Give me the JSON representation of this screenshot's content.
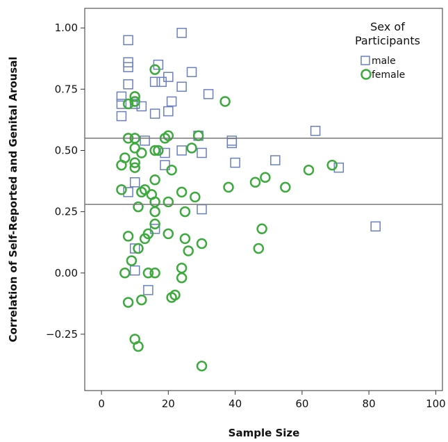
{
  "chart_data": {
    "type": "scatter",
    "title": "",
    "xlabel": "Sample Size",
    "ylabel": "Correlation of Self-Reported and Genital Arousal",
    "xlim": [
      -5,
      102
    ],
    "ylim": [
      -0.48,
      1.08
    ],
    "xticks": [
      0,
      20,
      40,
      60,
      80,
      100
    ],
    "xtick_labels": [
      "0",
      "20",
      "40",
      "60",
      "80",
      "100"
    ],
    "yticks": [
      1.0,
      0.75,
      0.5,
      0.25,
      0.0,
      -0.25
    ],
    "ytick_labels": [
      "1.00",
      "0.75",
      "0.50",
      "0.25",
      "0.00",
      "−0.25"
    ],
    "grid": false,
    "reference_lines_y": [
      0.55,
      0.28
    ],
    "legend": {
      "title_line1": "Sex of",
      "title_line2": "Participants",
      "position": "top-right"
    },
    "series": [
      {
        "name": "male",
        "marker": "square",
        "color": "#6a7fc1",
        "points": [
          [
            8,
            0.95
          ],
          [
            24,
            0.98
          ],
          [
            8,
            0.86
          ],
          [
            8,
            0.84
          ],
          [
            8,
            0.77
          ],
          [
            17,
            0.85
          ],
          [
            20,
            0.8
          ],
          [
            27,
            0.82
          ],
          [
            16,
            0.78
          ],
          [
            18,
            0.78
          ],
          [
            24,
            0.76
          ],
          [
            32,
            0.73
          ],
          [
            6,
            0.72
          ],
          [
            6,
            0.69
          ],
          [
            10,
            0.69
          ],
          [
            12,
            0.68
          ],
          [
            21,
            0.7
          ],
          [
            20,
            0.66
          ],
          [
            16,
            0.65
          ],
          [
            6,
            0.64
          ],
          [
            64,
            0.58
          ],
          [
            29,
            0.56
          ],
          [
            13,
            0.54
          ],
          [
            39,
            0.54
          ],
          [
            39,
            0.53
          ],
          [
            24,
            0.5
          ],
          [
            30,
            0.49
          ],
          [
            19,
            0.49
          ],
          [
            52,
            0.46
          ],
          [
            40,
            0.45
          ],
          [
            19,
            0.44
          ],
          [
            71,
            0.43
          ],
          [
            10,
            0.37
          ],
          [
            8,
            0.33
          ],
          [
            30,
            0.26
          ],
          [
            82,
            0.19
          ],
          [
            16,
            0.18
          ],
          [
            10,
            0.1
          ],
          [
            10,
            0.01
          ],
          [
            14,
            -0.07
          ]
        ]
      },
      {
        "name": "female",
        "marker": "circle",
        "color": "#3caa3c",
        "points": [
          [
            16,
            0.83
          ],
          [
            10,
            0.72
          ],
          [
            10,
            0.7
          ],
          [
            8,
            0.69
          ],
          [
            37,
            0.7
          ],
          [
            8,
            0.55
          ],
          [
            10,
            0.55
          ],
          [
            19,
            0.55
          ],
          [
            20,
            0.56
          ],
          [
            29,
            0.56
          ],
          [
            10,
            0.51
          ],
          [
            16,
            0.5
          ],
          [
            17,
            0.5
          ],
          [
            27,
            0.51
          ],
          [
            12,
            0.49
          ],
          [
            7,
            0.47
          ],
          [
            6,
            0.44
          ],
          [
            10,
            0.45
          ],
          [
            10,
            0.43
          ],
          [
            21,
            0.42
          ],
          [
            69,
            0.44
          ],
          [
            62,
            0.42
          ],
          [
            49,
            0.39
          ],
          [
            46,
            0.37
          ],
          [
            55,
            0.35
          ],
          [
            38,
            0.35
          ],
          [
            16,
            0.38
          ],
          [
            6,
            0.34
          ],
          [
            12,
            0.33
          ],
          [
            13,
            0.34
          ],
          [
            15,
            0.32
          ],
          [
            24,
            0.33
          ],
          [
            28,
            0.31
          ],
          [
            16,
            0.29
          ],
          [
            20,
            0.29
          ],
          [
            11,
            0.27
          ],
          [
            16,
            0.25
          ],
          [
            25,
            0.25
          ],
          [
            16,
            0.2
          ],
          [
            14,
            0.16
          ],
          [
            20,
            0.16
          ],
          [
            8,
            0.15
          ],
          [
            13,
            0.14
          ],
          [
            25,
            0.14
          ],
          [
            30,
            0.12
          ],
          [
            11,
            0.1
          ],
          [
            26,
            0.09
          ],
          [
            48,
            0.18
          ],
          [
            47,
            0.1
          ],
          [
            9,
            0.05
          ],
          [
            7,
            0.0
          ],
          [
            14,
            0.0
          ],
          [
            16,
            0.0
          ],
          [
            24,
            0.02
          ],
          [
            24,
            -0.02
          ],
          [
            8,
            -0.12
          ],
          [
            12,
            -0.11
          ],
          [
            21,
            -0.1
          ],
          [
            22,
            -0.09
          ],
          [
            10,
            -0.27
          ],
          [
            11,
            -0.3
          ],
          [
            30,
            -0.38
          ]
        ]
      }
    ]
  }
}
